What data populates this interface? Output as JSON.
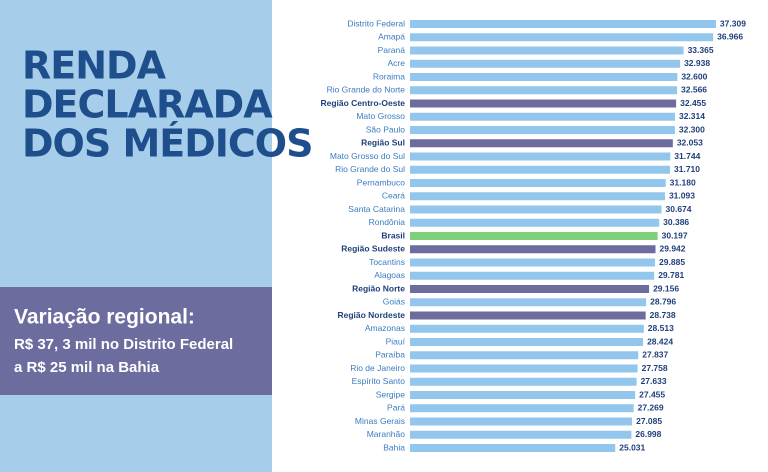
{
  "panel": {
    "title_lines": [
      "RENDA",
      "DECLARADA",
      "DOS MÉDICOS"
    ],
    "callout": {
      "heading": "Variação regional:",
      "lines": [
        "R$ 37, 3 mil no Distrito Federal",
        "a R$ 25 mil na Bahia"
      ]
    }
  },
  "chart_data": {
    "type": "hbar",
    "categories": [
      "Distrito Federal",
      "Amapá",
      "Paraná",
      "Acre",
      "Roraima",
      "Rio Grande do Norte",
      "Região Centro-Oeste",
      "Mato Grosso",
      "São Paulo",
      "Região Sul",
      "Mato Grosso do Sul",
      "Rio Grande do Sul",
      "Pernambuco",
      "Ceará",
      "Santa Catarina",
      "Rondônia",
      "Brasil",
      "Região Sudeste",
      "Tocantins",
      "Alagoas",
      "Região Norte",
      "Goiás",
      "Região Nordeste",
      "Amazonas",
      "Piauí",
      "Paraíba",
      "Rio de Janeiro",
      "Espírito Santo",
      "Sergipe",
      "Pará",
      "Minas Gerais",
      "Maranhão",
      "Bahia"
    ],
    "values": [
      37309,
      36966,
      33365,
      32938,
      32600,
      32566,
      32455,
      32314,
      32300,
      32053,
      31744,
      31710,
      31180,
      31093,
      30674,
      30386,
      30197,
      29942,
      29885,
      29781,
      29156,
      28796,
      28738,
      28513,
      28424,
      27837,
      27758,
      27633,
      27455,
      27269,
      27085,
      26998,
      25031
    ],
    "value_labels": [
      "37.309",
      "36.966",
      "33.365",
      "32.938",
      "32.600",
      "32.566",
      "32.455",
      "32.314",
      "32.300",
      "32.053",
      "31.744",
      "31.710",
      "31.180",
      "31.093",
      "30.674",
      "30.386",
      "30.197",
      "29.942",
      "29.885",
      "29.781",
      "29.156",
      "28.796",
      "28.738",
      "28.513",
      "28.424",
      "27.837",
      "27.758",
      "27.633",
      "27.455",
      "27.269",
      "27.085",
      "26.998",
      "25.031"
    ],
    "color": "#93c6ec",
    "colors": [
      "#93c6ec",
      "#93c6ec",
      "#93c6ec",
      "#93c6ec",
      "#93c6ec",
      "#93c6ec",
      "#6d6c9f",
      "#93c6ec",
      "#93c6ec",
      "#6d6c9f",
      "#93c6ec",
      "#93c6ec",
      "#93c6ec",
      "#93c6ec",
      "#93c6ec",
      "#93c6ec",
      "#7fd07c",
      "#6d6c9f",
      "#93c6ec",
      "#93c6ec",
      "#6d6c9f",
      "#93c6ec",
      "#6d6c9f",
      "#93c6ec",
      "#93c6ec",
      "#93c6ec",
      "#93c6ec",
      "#93c6ec",
      "#93c6ec",
      "#93c6ec",
      "#93c6ec",
      "#93c6ec",
      "#93c6ec"
    ],
    "xlim": [
      0,
      40000
    ]
  }
}
